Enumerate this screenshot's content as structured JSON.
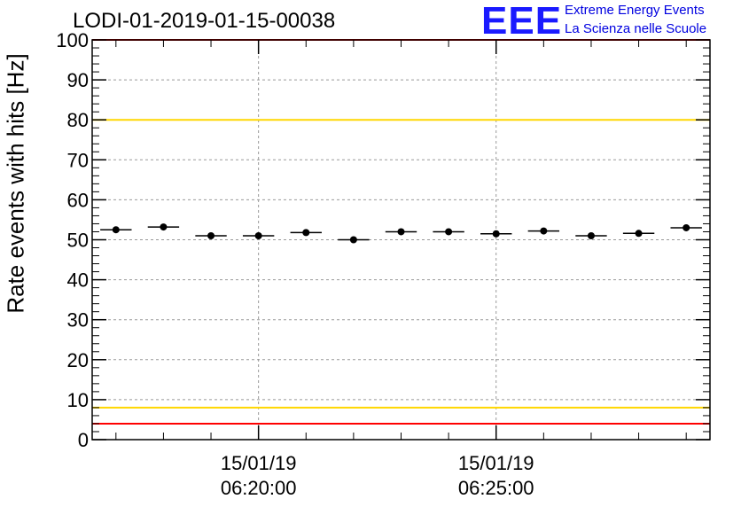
{
  "chart_data": {
    "type": "scatter",
    "title": "LODI-01-2019-01-15-00038",
    "ylabel": "Rate events with hits [Hz]",
    "xlabel": "",
    "ylim": [
      0,
      100
    ],
    "yticks": [
      0,
      10,
      20,
      30,
      40,
      50,
      60,
      70,
      80,
      90,
      100
    ],
    "xticks": [
      {
        "date": "15/01/19",
        "time": "06:20:00",
        "x": 3
      },
      {
        "date": "15/01/19",
        "time": "06:25:00",
        "x": 8
      }
    ],
    "xlim": [
      -0.5,
      12.5
    ],
    "series": [
      {
        "name": "rate",
        "bin_half_width": 0.33,
        "x": [
          0,
          1,
          2,
          3,
          4,
          5,
          6,
          7,
          8,
          9,
          10,
          11,
          12
        ],
        "values": [
          52.5,
          53.2,
          51.0,
          51.0,
          51.8,
          50.0,
          52.0,
          52.0,
          51.5,
          52.2,
          51.0,
          51.6,
          53.0
        ]
      }
    ],
    "thresholds": [
      {
        "value": 100,
        "color": "#ff0000"
      },
      {
        "value": 80,
        "color": "#ffd700"
      },
      {
        "value": 8,
        "color": "#ffd700"
      },
      {
        "value": 4,
        "color": "#ff0000"
      }
    ],
    "grid": true
  },
  "logo": {
    "mark": "EEE",
    "line1": "Extreme Energy Events",
    "line2": "La Scienza nelle Scuole"
  },
  "colors": {
    "logo_mark": "#1a1aff",
    "logo_text": "#0000e0"
  }
}
